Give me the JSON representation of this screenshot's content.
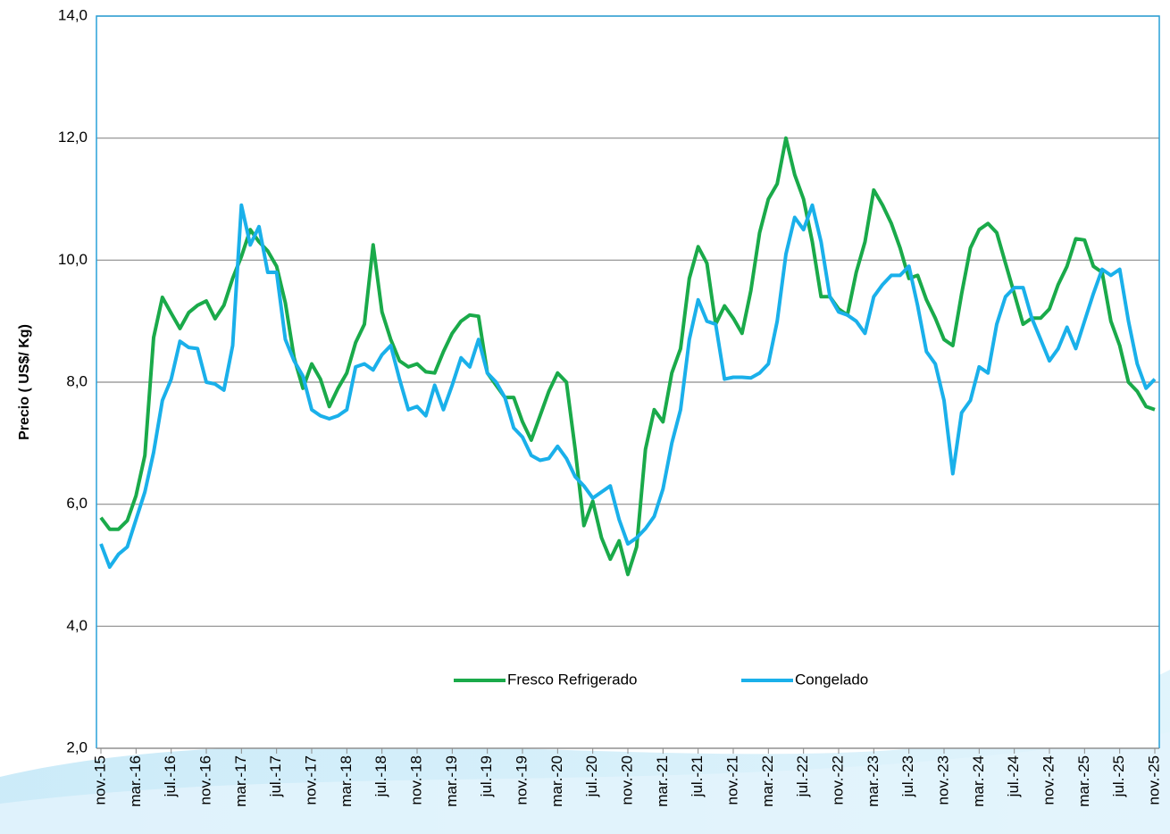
{
  "chart_data": {
    "type": "line",
    "y_label": "Precio ( US$/ Kg)",
    "categories": [
      "nov.-15",
      null,
      null,
      null,
      "mar.-16",
      null,
      null,
      null,
      "jul.-16",
      null,
      null,
      null,
      "nov.-16",
      null,
      null,
      null,
      "mar.-17",
      null,
      null,
      null,
      "jul.-17",
      null,
      null,
      null,
      "nov.-17",
      null,
      null,
      null,
      "mar.-18",
      null,
      null,
      null,
      "jul.-18",
      null,
      null,
      null,
      "nov.-18",
      null,
      null,
      null,
      "mar.-19",
      null,
      null,
      null,
      "jul.-19",
      null,
      null,
      null,
      "nov.-19",
      null,
      null,
      null,
      "mar.-20",
      null,
      null,
      null,
      "jul.-20",
      null,
      null,
      null,
      "nov.-20",
      null,
      null,
      null,
      "mar.-21",
      null,
      null,
      null,
      "jul.-21",
      null,
      null,
      null,
      "nov.-21",
      null,
      null,
      null,
      "mar.-22",
      null,
      null,
      null,
      "jul.-22",
      null,
      null,
      null,
      "nov.-22",
      null,
      null,
      null,
      "mar.-23",
      null,
      null,
      null,
      "jul.-23",
      null,
      null,
      null,
      "nov.-23",
      null,
      null,
      null,
      "mar.-24",
      null,
      null,
      null,
      "jul.-24",
      null,
      null,
      null,
      "nov.-24",
      null,
      null,
      null,
      "mar.-25",
      null,
      null,
      null,
      "jul.-25",
      null,
      null,
      null,
      "nov.-25"
    ],
    "series": [
      {
        "name": "Fresco Refrigerado",
        "color": "#1aaa4a",
        "values": [
          5.78,
          5.59,
          5.59,
          5.73,
          6.14,
          6.8,
          8.73,
          9.39,
          9.13,
          8.88,
          9.14,
          9.26,
          9.33,
          9.04,
          9.26,
          9.7,
          10.06,
          10.5,
          10.3,
          10.15,
          9.9,
          9.3,
          8.4,
          7.9,
          8.3,
          8.05,
          7.6,
          7.9,
          8.15,
          8.65,
          8.95,
          10.25,
          9.15,
          8.7,
          8.35,
          8.25,
          8.3,
          8.17,
          8.15,
          8.5,
          8.8,
          9.0,
          9.1,
          9.08,
          8.15,
          7.95,
          7.75,
          7.75,
          7.35,
          7.05,
          7.45,
          7.85,
          8.15,
          8.0,
          6.9,
          5.65,
          6.05,
          5.45,
          5.1,
          5.4,
          4.85,
          5.3,
          6.9,
          7.55,
          7.35,
          8.15,
          8.55,
          9.7,
          10.22,
          9.95,
          8.95,
          9.25,
          9.05,
          8.8,
          9.5,
          10.45,
          11.0,
          11.25,
          12.0,
          11.4,
          11.0,
          10.3,
          9.4,
          9.4,
          9.2,
          9.1,
          9.8,
          10.3,
          11.15,
          10.9,
          10.6,
          10.2,
          9.7,
          9.75,
          9.35,
          9.05,
          8.7,
          8.6,
          9.45,
          10.2,
          10.5,
          10.6,
          10.45,
          9.95,
          9.45,
          8.95,
          9.05,
          9.05,
          9.2,
          9.6,
          9.9,
          10.35,
          10.33,
          9.9,
          9.8,
          9.0,
          8.6,
          8.0,
          7.85,
          7.6,
          7.55
        ]
      },
      {
        "name": "Congelado",
        "color": "#1ab0ea",
        "values": [
          5.35,
          4.97,
          5.18,
          5.3,
          5.75,
          6.2,
          6.85,
          7.7,
          8.05,
          8.67,
          8.57,
          8.55,
          8.0,
          7.97,
          7.87,
          8.6,
          10.9,
          10.25,
          10.55,
          9.8,
          9.8,
          8.7,
          8.35,
          8.1,
          7.55,
          7.45,
          7.4,
          7.45,
          7.55,
          8.25,
          8.3,
          8.2,
          8.45,
          8.6,
          8.05,
          7.55,
          7.6,
          7.45,
          7.95,
          7.55,
          7.95,
          8.4,
          8.25,
          8.7,
          8.15,
          8.0,
          7.75,
          7.25,
          7.1,
          6.8,
          6.72,
          6.75,
          6.95,
          6.75,
          6.45,
          6.3,
          6.1,
          6.2,
          6.3,
          5.75,
          5.35,
          5.45,
          5.6,
          5.8,
          6.25,
          7.0,
          7.55,
          8.7,
          9.35,
          9.0,
          8.95,
          8.05,
          8.08,
          8.08,
          8.07,
          8.15,
          8.3,
          9.0,
          10.1,
          10.7,
          10.5,
          10.9,
          10.3,
          9.4,
          9.15,
          9.1,
          9.0,
          8.8,
          9.4,
          9.6,
          9.75,
          9.75,
          9.9,
          9.25,
          8.5,
          8.3,
          7.7,
          6.5,
          7.5,
          7.7,
          8.25,
          8.15,
          8.95,
          9.4,
          9.55,
          9.55,
          9.05,
          8.7,
          8.35,
          8.55,
          8.9,
          8.55,
          9.0,
          9.45,
          9.85,
          9.75,
          9.85,
          9.0,
          8.3,
          7.9,
          8.05
        ]
      }
    ],
    "ylim": [
      2,
      14
    ],
    "yticks": [
      {
        "value": 2,
        "label": "2,0"
      },
      {
        "value": 4,
        "label": "4,0"
      },
      {
        "value": 6,
        "label": "6,0"
      },
      {
        "value": 8,
        "label": "8,0"
      },
      {
        "value": 10,
        "label": "10,0"
      },
      {
        "value": 12,
        "label": "12,0"
      },
      {
        "value": 14,
        "label": "14,0"
      }
    ],
    "grid": true,
    "legend": "bottom"
  }
}
